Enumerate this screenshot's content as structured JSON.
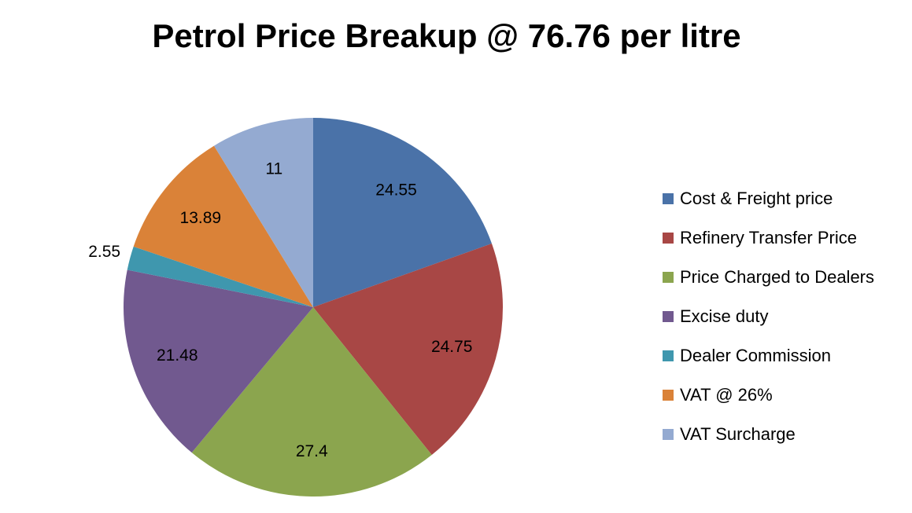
{
  "chart_data": {
    "type": "pie",
    "title": "Petrol Price Breakup @ 76.76 per litre",
    "categories": [
      "Cost & Freight price",
      "Refinery Transfer Price",
      "Price Charged to Dealers",
      "Excise duty",
      "Dealer Commission",
      "VAT @ 26%",
      "VAT Surcharge"
    ],
    "values": [
      24.55,
      24.75,
      27.4,
      21.48,
      2.55,
      13.89,
      11
    ],
    "value_labels": [
      "24.55",
      "24.75",
      "27.4",
      "21.48",
      "2.55",
      "13.89",
      "11"
    ],
    "colors": [
      "#4A72A8",
      "#A84745",
      "#8BA54E",
      "#71598F",
      "#3F97AE",
      "#DA8238",
      "#94AAD1"
    ],
    "start_angle": "top",
    "direction": "clockwise",
    "legend_position": "right"
  }
}
